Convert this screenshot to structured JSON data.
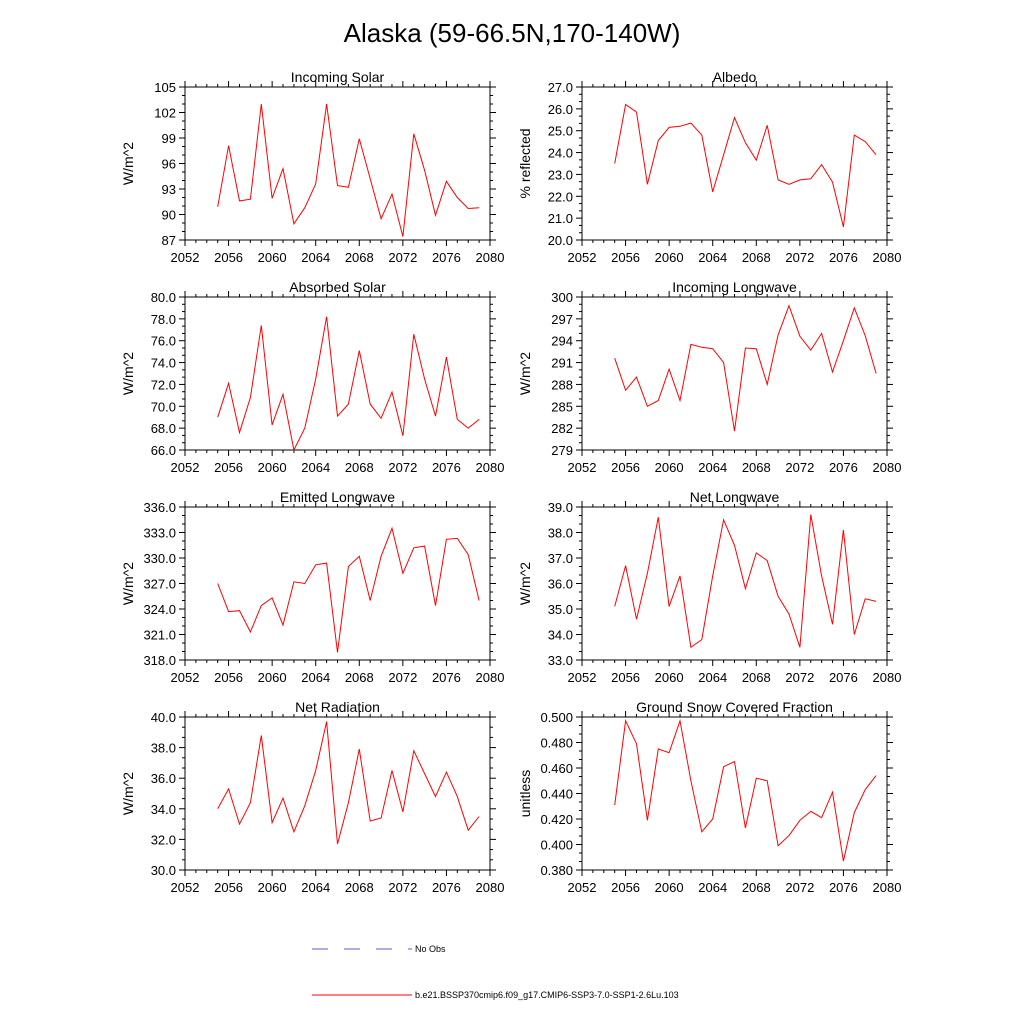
{
  "figure": {
    "title": "Alaska (59-66.5N,170-140W)",
    "legend": [
      {
        "label": "No Obs",
        "color": "#5b5bd6",
        "style": "dashed"
      },
      {
        "label": "b.e21.BSSP370cmip6.f09_g17.CMIP6-SSP3-7.0-SSP1-2.6Lu.103",
        "color": "#ff0000",
        "style": "solid"
      }
    ]
  },
  "chart_data": [
    {
      "type": "line",
      "title": "Incoming Solar",
      "ylabel": "W/m^2",
      "xlim": [
        2052,
        2080
      ],
      "xticks": [
        2052,
        2056,
        2060,
        2064,
        2068,
        2072,
        2076,
        2080
      ],
      "ylim": [
        87,
        105
      ],
      "yticks": [
        87,
        90,
        93,
        96,
        99,
        102,
        105
      ],
      "ydecimals": 0,
      "x": [
        2055,
        2056,
        2057,
        2058,
        2059,
        2060,
        2061,
        2062,
        2063,
        2064,
        2065,
        2066,
        2067,
        2068,
        2069,
        2070,
        2071,
        2072,
        2073,
        2074,
        2075,
        2076,
        2077,
        2078,
        2079
      ],
      "series": [
        {
          "name": "b.e21.BSSP370cmip6.f09_g17.CMIP6-SSP3-7.0-SSP1-2.6Lu.103",
          "color": "#ff0000",
          "values": [
            90.9,
            98.1,
            91.6,
            91.8,
            103.0,
            91.9,
            95.4,
            88.9,
            90.8,
            93.6,
            103.0,
            93.4,
            93.2,
            98.9,
            94.2,
            89.5,
            92.4,
            87.4,
            99.5,
            95.2,
            89.9,
            93.9,
            92.0,
            90.7,
            90.8
          ]
        }
      ]
    },
    {
      "type": "line",
      "title": "Albedo",
      "ylabel": "% reflected",
      "xlim": [
        2052,
        2080
      ],
      "xticks": [
        2052,
        2056,
        2060,
        2064,
        2068,
        2072,
        2076,
        2080
      ],
      "ylim": [
        20.0,
        27.0
      ],
      "yticks": [
        20.0,
        21.0,
        22.0,
        23.0,
        24.0,
        25.0,
        26.0,
        27.0
      ],
      "ydecimals": 1,
      "x": [
        2055,
        2056,
        2057,
        2058,
        2059,
        2060,
        2061,
        2062,
        2063,
        2064,
        2065,
        2066,
        2067,
        2068,
        2069,
        2070,
        2071,
        2072,
        2073,
        2074,
        2075,
        2076,
        2077,
        2078,
        2079
      ],
      "series": [
        {
          "name": "b.e21.BSSP370cmip6.f09_g17.CMIP6-SSP3-7.0-SSP1-2.6Lu.103",
          "color": "#ff0000",
          "values": [
            23.5,
            26.2,
            25.85,
            22.55,
            24.55,
            25.15,
            25.2,
            25.35,
            24.8,
            22.2,
            23.9,
            25.6,
            24.45,
            23.65,
            25.25,
            22.75,
            22.55,
            22.75,
            22.8,
            23.45,
            22.65,
            20.6,
            24.8,
            24.5,
            23.9
          ]
        }
      ]
    },
    {
      "type": "line",
      "title": "Absorbed Solar",
      "ylabel": "W/m^2",
      "xlim": [
        2052,
        2080
      ],
      "xticks": [
        2052,
        2056,
        2060,
        2064,
        2068,
        2072,
        2076,
        2080
      ],
      "ylim": [
        66.0,
        80.0
      ],
      "yticks": [
        66.0,
        68.0,
        70.0,
        72.0,
        74.0,
        76.0,
        78.0,
        80.0
      ],
      "ydecimals": 1,
      "x": [
        2055,
        2056,
        2057,
        2058,
        2059,
        2060,
        2061,
        2062,
        2063,
        2064,
        2065,
        2066,
        2067,
        2068,
        2069,
        2070,
        2071,
        2072,
        2073,
        2074,
        2075,
        2076,
        2077,
        2078,
        2079
      ],
      "series": [
        {
          "name": "b.e21.BSSP370cmip6.f09_g17.CMIP6-SSP3-7.0-SSP1-2.6Lu.103",
          "color": "#ff0000",
          "values": [
            69.0,
            72.1,
            67.6,
            70.8,
            77.4,
            68.3,
            71.1,
            66.0,
            68.0,
            72.5,
            78.2,
            69.1,
            70.2,
            75.1,
            70.2,
            68.9,
            71.3,
            67.3,
            76.6,
            72.5,
            69.1,
            74.5,
            68.8,
            68.0,
            68.8
          ]
        }
      ]
    },
    {
      "type": "line",
      "title": "Incoming Longwave",
      "ylabel": "W/m^2",
      "xlim": [
        2052,
        2080
      ],
      "xticks": [
        2052,
        2056,
        2060,
        2064,
        2068,
        2072,
        2076,
        2080
      ],
      "ylim": [
        279,
        300
      ],
      "yticks": [
        279,
        282,
        285,
        288,
        291,
        294,
        297,
        300
      ],
      "ydecimals": 0,
      "x": [
        2055,
        2056,
        2057,
        2058,
        2059,
        2060,
        2061,
        2062,
        2063,
        2064,
        2065,
        2066,
        2067,
        2068,
        2069,
        2070,
        2071,
        2072,
        2073,
        2074,
        2075,
        2076,
        2077,
        2078,
        2079
      ],
      "series": [
        {
          "name": "b.e21.BSSP370cmip6.f09_g17.CMIP6-SSP3-7.0-SSP1-2.6Lu.103",
          "color": "#ff0000",
          "values": [
            291.6,
            287.2,
            289.0,
            285.0,
            285.8,
            290.1,
            285.8,
            293.5,
            293.1,
            292.9,
            291.0,
            281.6,
            293.0,
            292.9,
            288.0,
            294.8,
            298.8,
            294.6,
            292.7,
            295.0,
            289.7,
            294.0,
            298.5,
            294.7,
            289.5
          ]
        }
      ]
    },
    {
      "type": "line",
      "title": "Emitted Longwave",
      "ylabel": "W/m^2",
      "xlim": [
        2052,
        2080
      ],
      "xticks": [
        2052,
        2056,
        2060,
        2064,
        2068,
        2072,
        2076,
        2080
      ],
      "ylim": [
        318.0,
        336.0
      ],
      "yticks": [
        318.0,
        321.0,
        324.0,
        327.0,
        330.0,
        333.0,
        336.0
      ],
      "ydecimals": 1,
      "x": [
        2055,
        2056,
        2057,
        2058,
        2059,
        2060,
        2061,
        2062,
        2063,
        2064,
        2065,
        2066,
        2067,
        2068,
        2069,
        2070,
        2071,
        2072,
        2073,
        2074,
        2075,
        2076,
        2077,
        2078,
        2079
      ],
      "series": [
        {
          "name": "b.e21.BSSP370cmip6.f09_g17.CMIP6-SSP3-7.0-SSP1-2.6Lu.103",
          "color": "#ff0000",
          "values": [
            327.0,
            323.7,
            323.8,
            321.3,
            324.4,
            325.3,
            322.1,
            327.2,
            327.0,
            329.2,
            329.4,
            318.9,
            329.0,
            330.2,
            325.0,
            330.2,
            333.5,
            328.2,
            331.2,
            331.4,
            324.4,
            332.2,
            332.3,
            330.4,
            325.0
          ]
        }
      ]
    },
    {
      "type": "line",
      "title": "Net Longwave",
      "ylabel": "W/m^2",
      "xlim": [
        2052,
        2080
      ],
      "xticks": [
        2052,
        2056,
        2060,
        2064,
        2068,
        2072,
        2076,
        2080
      ],
      "ylim": [
        33.0,
        39.0
      ],
      "yticks": [
        33.0,
        34.0,
        35.0,
        36.0,
        37.0,
        38.0,
        39.0
      ],
      "ydecimals": 1,
      "x": [
        2055,
        2056,
        2057,
        2058,
        2059,
        2060,
        2061,
        2062,
        2063,
        2064,
        2065,
        2066,
        2067,
        2068,
        2069,
        2070,
        2071,
        2072,
        2073,
        2074,
        2075,
        2076,
        2077,
        2078,
        2079
      ],
      "series": [
        {
          "name": "b.e21.BSSP370cmip6.f09_g17.CMIP6-SSP3-7.0-SSP1-2.6Lu.103",
          "color": "#ff0000",
          "values": [
            35.1,
            36.7,
            34.6,
            36.4,
            38.6,
            35.1,
            36.3,
            33.5,
            33.8,
            36.3,
            38.5,
            37.5,
            35.8,
            37.2,
            36.9,
            35.5,
            34.8,
            33.5,
            38.7,
            36.3,
            34.4,
            38.1,
            34.0,
            35.4,
            35.3
          ]
        }
      ]
    },
    {
      "type": "line",
      "title": "Net Radiation",
      "ylabel": "W/m^2",
      "xlim": [
        2052,
        2080
      ],
      "xticks": [
        2052,
        2056,
        2060,
        2064,
        2068,
        2072,
        2076,
        2080
      ],
      "ylim": [
        30.0,
        40.0
      ],
      "yticks": [
        30.0,
        32.0,
        34.0,
        36.0,
        38.0,
        40.0
      ],
      "ydecimals": 1,
      "x": [
        2055,
        2056,
        2057,
        2058,
        2059,
        2060,
        2061,
        2062,
        2063,
        2064,
        2065,
        2066,
        2067,
        2068,
        2069,
        2070,
        2071,
        2072,
        2073,
        2074,
        2075,
        2076,
        2077,
        2078,
        2079
      ],
      "series": [
        {
          "name": "b.e21.BSSP370cmip6.f09_g17.CMIP6-SSP3-7.0-SSP1-2.6Lu.103",
          "color": "#ff0000",
          "values": [
            34.0,
            35.3,
            33.0,
            34.4,
            38.8,
            33.1,
            34.7,
            32.5,
            34.2,
            36.5,
            39.7,
            31.7,
            34.4,
            37.9,
            33.2,
            33.4,
            36.5,
            33.8,
            37.8,
            36.3,
            34.8,
            36.4,
            34.8,
            32.6,
            33.5
          ]
        }
      ]
    },
    {
      "type": "line",
      "title": "Ground Snow Covered Fraction",
      "ylabel": "unitless",
      "xlim": [
        2052,
        2080
      ],
      "xticks": [
        2052,
        2056,
        2060,
        2064,
        2068,
        2072,
        2076,
        2080
      ],
      "ylim": [
        0.38,
        0.5
      ],
      "yticks": [
        0.38,
        0.4,
        0.42,
        0.44,
        0.46,
        0.48,
        0.5
      ],
      "ydecimals": 3,
      "x": [
        2055,
        2056,
        2057,
        2058,
        2059,
        2060,
        2061,
        2062,
        2063,
        2064,
        2065,
        2066,
        2067,
        2068,
        2069,
        2070,
        2071,
        2072,
        2073,
        2074,
        2075,
        2076,
        2077,
        2078,
        2079
      ],
      "series": [
        {
          "name": "b.e21.BSSP370cmip6.f09_g17.CMIP6-SSP3-7.0-SSP1-2.6Lu.103",
          "color": "#ff0000",
          "values": [
            0.431,
            0.497,
            0.479,
            0.419,
            0.475,
            0.472,
            0.497,
            0.45,
            0.41,
            0.42,
            0.461,
            0.465,
            0.413,
            0.452,
            0.45,
            0.399,
            0.407,
            0.419,
            0.426,
            0.421,
            0.441,
            0.387,
            0.425,
            0.443,
            0.454
          ]
        }
      ]
    }
  ]
}
